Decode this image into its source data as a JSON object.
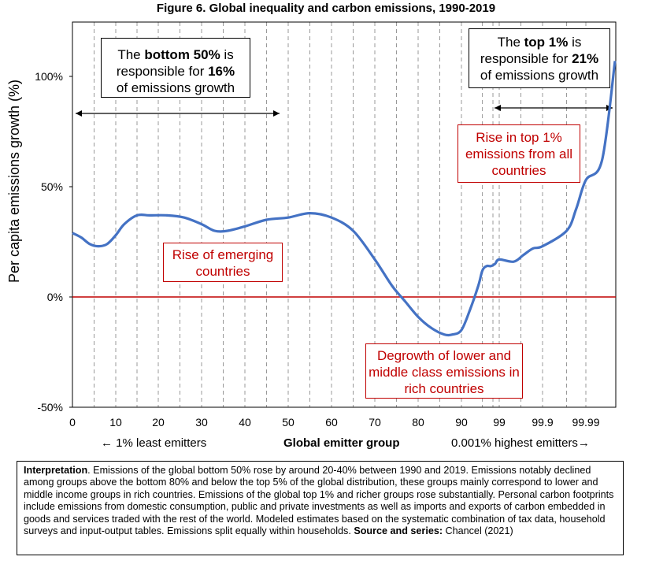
{
  "title": "Figure 6. Global inequality and carbon emissions, 1990-2019",
  "ylabel": "Per capita emissions growth (%)",
  "xlabel": "Global emitter group",
  "x_note_left": "← 1% least emitters",
  "x_note_right": "0.001% highest emitters→",
  "annotations": {
    "bottom50": {
      "pre": "The ",
      "bold1": "bottom 50%",
      "mid1": " is",
      "line2": "responsible for ",
      "bold2": "16%",
      "line3": "of emissions growth"
    },
    "top1": {
      "pre": "The ",
      "bold1": "top 1%",
      "mid1": " is",
      "line2": "responsible for ",
      "bold2": "21%",
      "line3": "of  emissions growth"
    },
    "emerging": "Rise of emerging countries",
    "degrowth": "Degrowth of lower and middle class emissions in rich countries",
    "rise_top": "Rise in top 1% emissions from all countries"
  },
  "interpretation": {
    "label": "Interpretation",
    "text": ". Emissions of the global bottom 50% rose by around 20-40% between 1990 and 2019. Emissions notably declined among groups above the bottom 80% and below the top 5% of the global distribution, these groups mainly correspond to lower and middle income groups in rich countries. Emissions of the global top 1% and richer groups rose substantially. Personal carbon footprints include emissions from domestic consumption, public and private investments as well as imports and exports of carbon embedded in goods and services traded with the rest of the world. Modeled estimates based on the systematic combination of tax data, household surveys and input-output tables. Emissions split equally within households. ",
    "source_label": "Source and series:",
    "source": " Chancel (2021)"
  },
  "colors": {
    "line": "#4472c4",
    "zero_line": "#c00000",
    "grid": "#808080",
    "annotation_red": "#c00000"
  },
  "chart_data": {
    "type": "line",
    "title": "Figure 6. Global inequality and carbon emissions, 1990-2019",
    "xlabel": "Global emitter group",
    "ylabel": "Per capita emissions growth (%)",
    "ylim": [
      -50,
      125
    ],
    "y_ticks": [
      -50,
      0,
      50,
      100
    ],
    "y_tick_labels": [
      "-50%",
      "0%",
      "50%",
      "100%"
    ],
    "x_ticks": [
      0,
      10,
      20,
      30,
      40,
      50,
      60,
      70,
      80,
      90,
      99,
      99.9,
      99.99
    ],
    "x_tick_labels": [
      "0",
      "10",
      "20",
      "30",
      "40",
      "50",
      "60",
      "70",
      "80",
      "90",
      "99",
      "99.9",
      "99.99"
    ],
    "grid": "vertical dashed",
    "series": [
      {
        "x": [
          0,
          2,
          4,
          6,
          8,
          10,
          12,
          15,
          18,
          22,
          26,
          30,
          33,
          36,
          40,
          45,
          50,
          55,
          60,
          65,
          70,
          74,
          77,
          80,
          83,
          86,
          88,
          90,
          92,
          94,
          95,
          96,
          97,
          98,
          99,
          99.3,
          99.5,
          99.7,
          99.9,
          99.95,
          99.97,
          99.99,
          99.995,
          99.999
        ],
        "y": [
          29,
          27,
          24,
          23,
          24,
          28,
          33,
          37,
          37,
          37,
          36,
          33,
          30,
          30,
          32,
          35,
          36,
          38,
          36,
          30,
          17,
          5,
          -2,
          -9,
          -14,
          -17,
          -17,
          -15,
          -6,
          5,
          12,
          14,
          14,
          15,
          17,
          16,
          19,
          22,
          23,
          30,
          40,
          53,
          62,
          107
        ]
      }
    ]
  }
}
